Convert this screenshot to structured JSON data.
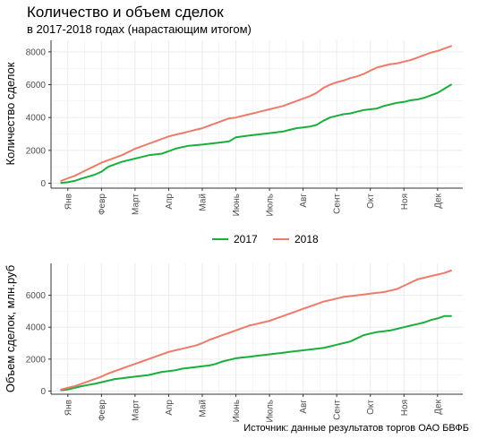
{
  "title": "Количество и объем сделок",
  "subtitle": "в 2017-2018 годах (нарастающим итогом)",
  "source": "Источник: данные результатов торгов ОАО БВФБ",
  "colors": {
    "s2017": "#1aaf3c",
    "s2018": "#ee7a6a",
    "grid": "#ebebeb",
    "axis": "#333333"
  },
  "chart_data": [
    {
      "type": "line",
      "ylabel": "Количество сделок",
      "xlabel": "",
      "categories": [
        "Янв",
        "Февр",
        "Март",
        "Апр",
        "Май",
        "Июнь",
        "Июль",
        "Авг",
        "Сент",
        "Окт",
        "Ноя",
        "Дек"
      ],
      "yticks": [
        0,
        2000,
        4000,
        6000,
        8000
      ],
      "ylim": [
        -300,
        8700
      ],
      "xlim": [
        0.5,
        12.75
      ],
      "grid": true,
      "series": [
        {
          "name": "2017",
          "color": "#1aaf3c",
          "x": [
            0.8,
            1.0,
            1.2,
            1.4,
            1.6,
            1.8,
            2.0,
            2.2,
            2.4,
            2.6,
            2.8,
            3.0,
            3.2,
            3.4,
            3.6,
            3.8,
            4.0,
            4.2,
            4.4,
            4.6,
            4.8,
            5.0,
            5.2,
            5.4,
            5.6,
            5.8,
            6.0,
            6.2,
            6.4,
            6.6,
            6.8,
            7.0,
            7.2,
            7.4,
            7.6,
            7.8,
            8.0,
            8.2,
            8.4,
            8.6,
            8.8,
            9.0,
            9.2,
            9.4,
            9.6,
            9.8,
            10.0,
            10.2,
            10.4,
            10.6,
            10.8,
            11.0,
            11.2,
            11.4,
            11.6,
            11.8,
            12.0,
            12.2,
            12.4
          ],
          "values": [
            20,
            60,
            140,
            280,
            400,
            520,
            700,
            1000,
            1150,
            1300,
            1400,
            1500,
            1600,
            1700,
            1750,
            1800,
            1950,
            2100,
            2200,
            2280,
            2320,
            2350,
            2400,
            2450,
            2500,
            2550,
            2800,
            2850,
            2900,
            2950,
            3000,
            3050,
            3100,
            3150,
            3250,
            3350,
            3400,
            3450,
            3550,
            3800,
            4000,
            4100,
            4200,
            4250,
            4350,
            4450,
            4500,
            4550,
            4700,
            4800,
            4900,
            4950,
            5050,
            5100,
            5200,
            5350,
            5500,
            5750,
            6000
          ]
        },
        {
          "name": "2018",
          "color": "#ee7a6a",
          "x": [
            0.8,
            1.0,
            1.2,
            1.4,
            1.6,
            1.8,
            2.0,
            2.2,
            2.4,
            2.6,
            2.8,
            3.0,
            3.2,
            3.4,
            3.6,
            3.8,
            4.0,
            4.2,
            4.4,
            4.6,
            4.8,
            5.0,
            5.2,
            5.4,
            5.6,
            5.8,
            6.0,
            6.2,
            6.4,
            6.6,
            6.8,
            7.0,
            7.2,
            7.4,
            7.6,
            7.8,
            8.0,
            8.2,
            8.4,
            8.6,
            8.8,
            9.0,
            9.2,
            9.4,
            9.6,
            9.8,
            10.0,
            10.2,
            10.4,
            10.6,
            10.8,
            11.0,
            11.2,
            11.4,
            11.6,
            11.8,
            12.0,
            12.2,
            12.4
          ],
          "values": [
            150,
            300,
            450,
            650,
            850,
            1050,
            1250,
            1400,
            1550,
            1700,
            1900,
            2100,
            2250,
            2400,
            2550,
            2700,
            2850,
            2950,
            3050,
            3150,
            3250,
            3350,
            3500,
            3650,
            3800,
            3950,
            4000,
            4100,
            4200,
            4300,
            4400,
            4500,
            4600,
            4700,
            4850,
            5000,
            5150,
            5300,
            5500,
            5800,
            6000,
            6150,
            6250,
            6400,
            6500,
            6650,
            6850,
            7050,
            7150,
            7250,
            7300,
            7400,
            7500,
            7650,
            7800,
            7950,
            8050,
            8200,
            8350
          ]
        }
      ]
    },
    {
      "type": "line",
      "ylabel": "Объем сделок, млн.руб",
      "xlabel": "",
      "categories": [
        "Янв",
        "Февр",
        "Март",
        "Апр",
        "Май",
        "Июнь",
        "Июль",
        "Авг",
        "Сент",
        "Окт",
        "Ноя",
        "Дек"
      ],
      "yticks": [
        0,
        2000,
        4000,
        6000
      ],
      "ylim": [
        -200,
        8000
      ],
      "xlim": [
        0.5,
        12.75
      ],
      "grid": true,
      "series": [
        {
          "name": "2017",
          "color": "#1aaf3c",
          "x": [
            0.8,
            1.0,
            1.2,
            1.4,
            1.6,
            1.8,
            2.0,
            2.2,
            2.4,
            2.6,
            2.8,
            3.0,
            3.2,
            3.4,
            3.6,
            3.8,
            4.0,
            4.2,
            4.4,
            4.6,
            4.8,
            5.0,
            5.2,
            5.4,
            5.6,
            5.8,
            6.0,
            6.2,
            6.4,
            6.6,
            6.8,
            7.0,
            7.2,
            7.4,
            7.6,
            7.8,
            8.0,
            8.2,
            8.4,
            8.6,
            8.8,
            9.0,
            9.2,
            9.4,
            9.6,
            9.8,
            10.0,
            10.2,
            10.4,
            10.6,
            10.8,
            11.0,
            11.2,
            11.4,
            11.6,
            11.8,
            12.0,
            12.2,
            12.4
          ],
          "values": [
            50,
            100,
            200,
            300,
            380,
            450,
            550,
            650,
            750,
            800,
            850,
            900,
            950,
            1000,
            1100,
            1200,
            1250,
            1300,
            1400,
            1450,
            1500,
            1550,
            1600,
            1700,
            1850,
            1950,
            2050,
            2100,
            2150,
            2200,
            2250,
            2300,
            2350,
            2400,
            2450,
            2500,
            2550,
            2600,
            2650,
            2700,
            2800,
            2900,
            3000,
            3100,
            3300,
            3500,
            3600,
            3700,
            3750,
            3800,
            3900,
            4000,
            4100,
            4200,
            4300,
            4450,
            4550,
            4700,
            4700
          ]
        },
        {
          "name": "2018",
          "color": "#ee7a6a",
          "x": [
            0.8,
            1.0,
            1.2,
            1.4,
            1.6,
            1.8,
            2.0,
            2.2,
            2.4,
            2.6,
            2.8,
            3.0,
            3.2,
            3.4,
            3.6,
            3.8,
            4.0,
            4.2,
            4.4,
            4.6,
            4.8,
            5.0,
            5.2,
            5.4,
            5.6,
            5.8,
            6.0,
            6.2,
            6.4,
            6.6,
            6.8,
            7.0,
            7.2,
            7.4,
            7.6,
            7.8,
            8.0,
            8.2,
            8.4,
            8.6,
            8.8,
            9.0,
            9.2,
            9.4,
            9.6,
            9.8,
            10.0,
            10.2,
            10.4,
            10.6,
            10.8,
            11.0,
            11.2,
            11.4,
            11.6,
            11.8,
            12.0,
            12.2,
            12.4
          ],
          "values": [
            100,
            200,
            300,
            450,
            600,
            750,
            900,
            1100,
            1250,
            1400,
            1550,
            1700,
            1850,
            2000,
            2150,
            2300,
            2450,
            2550,
            2650,
            2750,
            2850,
            3000,
            3200,
            3350,
            3500,
            3650,
            3800,
            3950,
            4100,
            4200,
            4300,
            4400,
            4550,
            4700,
            4850,
            5000,
            5150,
            5300,
            5450,
            5600,
            5700,
            5800,
            5900,
            5950,
            6000,
            6050,
            6100,
            6150,
            6200,
            6300,
            6400,
            6600,
            6800,
            7000,
            7100,
            7200,
            7300,
            7400,
            7550
          ]
        }
      ]
    }
  ],
  "legend": {
    "placement": "between-panels",
    "items": [
      "2017",
      "2018"
    ]
  }
}
